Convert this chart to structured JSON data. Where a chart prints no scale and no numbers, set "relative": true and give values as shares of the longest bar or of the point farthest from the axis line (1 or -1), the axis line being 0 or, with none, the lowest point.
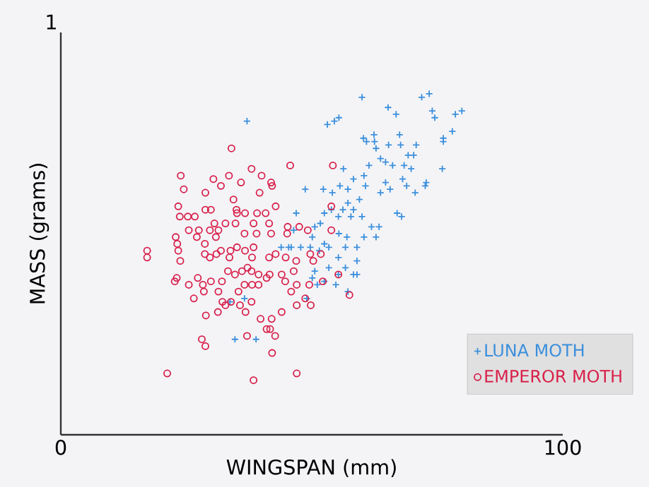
{
  "chart_data": {
    "type": "scatter",
    "xlabel": "WINGSPAN (mm)",
    "ylabel": "MASS (grams)",
    "relative": true,
    "xlim": [
      0,
      100
    ],
    "xticks": [
      0,
      100
    ],
    "legend": "bottom right",
    "annotations": [
      "1"
    ],
    "series": [
      {
        "name": "LUNA MOTH",
        "color": "#3b8fdc",
        "marker": "cross",
        "x": [
          37.1,
          60.0,
          65.2,
          66.8,
          71.9,
          73.4,
          74.0,
          74.5,
          78.6,
          79.9,
          78.0,
          76.2,
          76.2,
          76.0,
          72.8,
          53.1,
          54.5,
          55.4,
          60.3,
          62.4,
          62.5,
          60.9,
          67.5,
          67.7,
          69.2,
          70.8,
          70.3,
          65.3,
          62.8,
          63.7,
          61.4,
          64.7,
          66.1,
          68.4,
          69.8,
          60.4,
          56.3,
          55.6,
          58.3,
          60.7,
          64.7,
          65.6,
          68.1,
          68.9,
          70.6,
          72.6,
          67.0,
          67.9,
          63.7,
          52.3,
          48.7,
          54.1,
          57.2,
          59.5,
          57.2,
          58.3,
          56.2,
          53.9,
          52.5,
          51.7,
          50.6,
          55.3,
          57.8,
          60.0,
          61.9,
          63.4,
          62.8,
          60.4,
          59.0,
          57.0,
          55.4,
          52.5,
          50.1,
          46.9,
          46.4,
          45.4,
          45.9,
          43.9,
          47.8,
          49.7,
          51.5,
          53.4,
          56.7,
          55.3,
          59.0,
          53.4,
          50.6,
          50.1,
          56.7,
          55.3,
          58.3,
          59.0,
          52.5,
          51.1,
          54.8,
          57.2,
          34.7,
          38.9,
          33.7,
          36.6,
          49.0
        ],
        "values": [
          0.92,
          0.99,
          0.96,
          0.94,
          0.99,
          1,
          0.95,
          0.93,
          0.94,
          0.95,
          0.89,
          0.87,
          0.86,
          0.78,
          0.74,
          0.91,
          0.92,
          0.93,
          0.87,
          0.88,
          0.86,
          0.86,
          0.88,
          0.85,
          0.82,
          0.85,
          0.82,
          0.85,
          0.84,
          0.81,
          0.79,
          0.8,
          0.79,
          0.79,
          0.78,
          0.76,
          0.78,
          0.73,
          0.75,
          0.73,
          0.74,
          0.72,
          0.75,
          0.73,
          0.71,
          0.73,
          0.65,
          0.64,
          0.71,
          0.72,
          0.72,
          0.71,
          0.72,
          0.69,
          0.68,
          0.66,
          0.66,
          0.66,
          0.65,
          0.62,
          0.61,
          0.64,
          0.64,
          0.64,
          0.61,
          0.61,
          0.58,
          0.58,
          0.55,
          0.58,
          0.59,
          0.56,
          0.58,
          0.65,
          0.6,
          0.55,
          0.55,
          0.55,
          0.55,
          0.55,
          0.54,
          0.55,
          0.55,
          0.52,
          0.51,
          0.49,
          0.48,
          0.46,
          0.49,
          0.47,
          0.47,
          0.47,
          0.45,
          0.44,
          0.44,
          0.42,
          0.28,
          0.28,
          0.39,
          0.4,
          0.4
        ]
      },
      {
        "name": "EMPEROR MOTH",
        "color": "#d8204a",
        "marker": "circle",
        "x": [
          34.0,
          23.9,
          24.5,
          30.4,
          33.5,
          35.9,
          38.0,
          40.0,
          41.9,
          42.1,
          45.7,
          54.2,
          31.9,
          28.8,
          34.4,
          39.6,
          23.4,
          29.9,
          28.8,
          35.0,
          36.7,
          35.1,
          39.1,
          40.8,
          42.8,
          41.5,
          23.7,
          25.3,
          26.7,
          30.6,
          32.8,
          34.8,
          38.4,
          45.2,
          47.5,
          49.2,
          45.1,
          41.9,
          39.0,
          36.6,
          31.4,
          29.7,
          27.5,
          25.5,
          22.9,
          23.2,
          27.1,
          28.7,
          30.9,
          33.8,
          35.1,
          36.7,
          38.4,
          38.1,
          37.2,
          36.1,
          38.0,
          39.4,
          41.5,
          42.8,
          44.8,
          46.9,
          49.7,
          50.3,
          51.8,
          53.9,
          53.9,
          17.2,
          17.2,
          23.4,
          23.8,
          28.7,
          29.7,
          31.0,
          31.9,
          33.6,
          33.3,
          34.7,
          32.1,
          29.9,
          27.3,
          28.3,
          25.5,
          23.1,
          22.7,
          26.5,
          28.5,
          31.4,
          35.4,
          36.6,
          38.1,
          39.4,
          41.0,
          41.6,
          44.0,
          44.7,
          46.4,
          47.0,
          45.9,
          49.5,
          48.7,
          47.0,
          49.8,
          55.3,
          57.5,
          52.2,
          44.0,
          42.0,
          39.8,
          38.0,
          36.8,
          35.7,
          32.8,
          31.3,
          28.9,
          32.2,
          33.9,
          37.1,
          41.0,
          42.7,
          41.7,
          28.1,
          28.8,
          42.1,
          21.2,
          38.4,
          47.0
        ],
        "values": [
          0.84,
          0.76,
          0.72,
          0.75,
          0.76,
          0.74,
          0.78,
          0.76,
          0.74,
          0.73,
          0.79,
          0.79,
          0.73,
          0.71,
          0.69,
          0.71,
          0.67,
          0.66,
          0.66,
          0.66,
          0.65,
          0.65,
          0.65,
          0.65,
          0.67,
          0.62,
          0.64,
          0.64,
          0.64,
          0.62,
          0.62,
          0.62,
          0.62,
          0.61,
          0.61,
          0.6,
          0.59,
          0.59,
          0.59,
          0.59,
          0.6,
          0.6,
          0.6,
          0.6,
          0.58,
          0.56,
          0.58,
          0.56,
          0.58,
          0.54,
          0.55,
          0.54,
          0.55,
          0.52,
          0.49,
          0.48,
          0.48,
          0.47,
          0.52,
          0.53,
          0.52,
          0.51,
          0.53,
          0.51,
          0.53,
          0.67,
          0.6,
          0.54,
          0.52,
          0.54,
          0.51,
          0.53,
          0.52,
          0.53,
          0.54,
          0.52,
          0.48,
          0.47,
          0.45,
          0.45,
          0.46,
          0.44,
          0.44,
          0.46,
          0.45,
          0.4,
          0.42,
          0.42,
          0.42,
          0.44,
          0.44,
          0.44,
          0.46,
          0.47,
          0.47,
          0.45,
          0.48,
          0.44,
          0.42,
          0.44,
          0.4,
          0.38,
          0.38,
          0.47,
          0.41,
          0.45,
          0.36,
          0.34,
          0.34,
          0.39,
          0.36,
          0.38,
          0.38,
          0.36,
          0.35,
          0.39,
          0.39,
          0.29,
          0.31,
          0.29,
          0.31,
          0.28,
          0.26,
          0.24,
          0.18,
          0.16,
          0.18
        ]
      }
    ]
  }
}
